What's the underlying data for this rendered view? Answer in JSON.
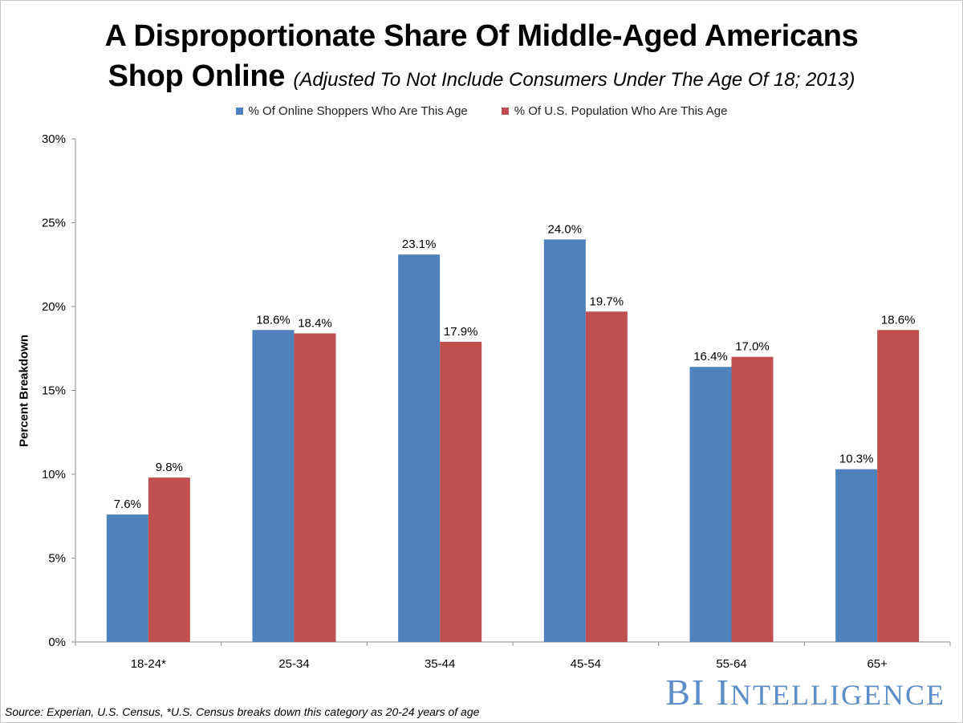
{
  "title_line1": "A Disproportionate Share Of Middle-Aged Americans",
  "title_line2": "Shop Online",
  "subtitle": "(Adjusted To Not Include Consumers Under The Age Of 18; 2013)",
  "source": "Source: Experian, U.S. Census, *U.S. Census breaks down this category as 20-24 years of age",
  "brand": {
    "prefix": "BI ",
    "initial": "I",
    "rest": "NTELLIGENCE"
  },
  "colors": {
    "series1": "#4f81bd",
    "series2": "#c0504d",
    "axis": "#8c8c8c",
    "brand": "#5b8ec9"
  },
  "chart_data": {
    "type": "bar",
    "title": "A Disproportionate Share Of Middle-Aged Americans Shop Online",
    "xlabel": "",
    "ylabel": "Percent Breakdown",
    "ylim": [
      0,
      30
    ],
    "yticks": [
      0,
      5,
      10,
      15,
      20,
      25,
      30
    ],
    "ytick_labels": [
      "0%",
      "5%",
      "10%",
      "15%",
      "20%",
      "25%",
      "30%"
    ],
    "grid": false,
    "legend_position": "top-center",
    "categories": [
      "18-24*",
      "25-34",
      "35-44",
      "45-54",
      "55-64",
      "65+"
    ],
    "series": [
      {
        "name": "% Of Online Shoppers Who Are This Age",
        "values": [
          7.6,
          18.6,
          23.1,
          24.0,
          16.4,
          10.3
        ],
        "labels": [
          "7.6%",
          "18.6%",
          "23.1%",
          "24.0%",
          "16.4%",
          "10.3%"
        ]
      },
      {
        "name": "% Of U.S. Population Who Are This Age",
        "values": [
          9.8,
          18.4,
          17.9,
          19.7,
          17.0,
          18.6
        ],
        "labels": [
          "9.8%",
          "18.4%",
          "17.9%",
          "19.7%",
          "17.0%",
          "18.6%"
        ]
      }
    ]
  }
}
